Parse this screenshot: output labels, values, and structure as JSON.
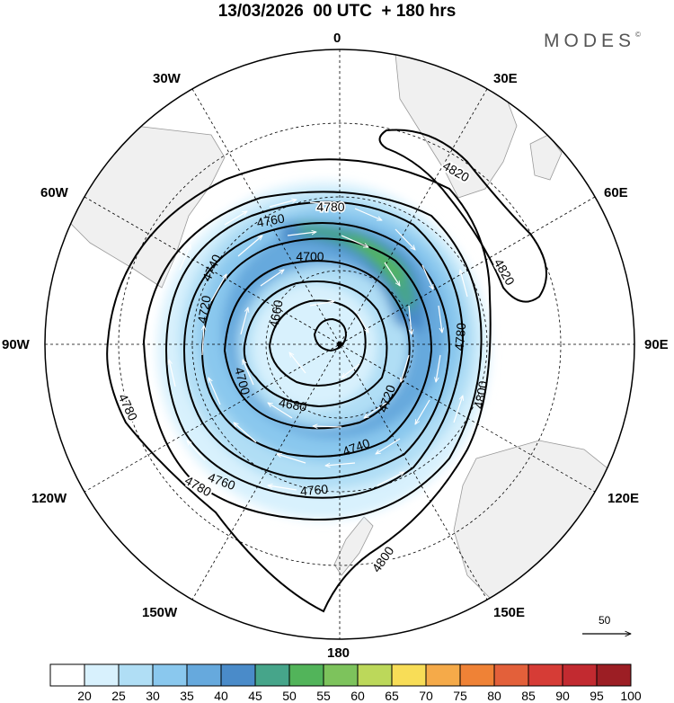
{
  "title": "13/03/2026  00 UTC  + 180 hrs",
  "brand": "MODES",
  "brand_mark": "©",
  "longitude_labels": {
    "top": "0",
    "bottom": "180",
    "left": "90W",
    "right": "90E",
    "n30w": "30W",
    "n30e": "30E",
    "n60w": "60W",
    "n60e": "60E",
    "s120w": "120W",
    "s120e": "120E",
    "s150w": "150W",
    "s150e": "150E"
  },
  "contour_labels": [
    "4820",
    "4820",
    "4780",
    "4760",
    "4740",
    "4720",
    "4700",
    "4660",
    "4680",
    "4700",
    "4720",
    "4740",
    "4760",
    "4760",
    "4780",
    "4780",
    "4780",
    "4800",
    "4800"
  ],
  "vector_reference": "50",
  "colorbar": {
    "ticks": [
      "20",
      "25",
      "30",
      "35",
      "40",
      "45",
      "50",
      "55",
      "60",
      "65",
      "70",
      "75",
      "80",
      "85",
      "90",
      "95",
      "100"
    ],
    "colors": [
      "#ffffff",
      "#d8f1fd",
      "#b0def5",
      "#8ac8ee",
      "#66a9dd",
      "#4a8bc9",
      "#46a58a",
      "#52b45a",
      "#7dc35c",
      "#bcd85a",
      "#f8dd57",
      "#f5aa49",
      "#ef8236",
      "#e3603a",
      "#d63c36",
      "#c22a30",
      "#9c1e24"
    ]
  },
  "colors": {
    "land": "#f0f0f0",
    "coast": "#999999",
    "contour": "#000000",
    "grid": "#000000",
    "vectors": "#ffffff"
  }
}
